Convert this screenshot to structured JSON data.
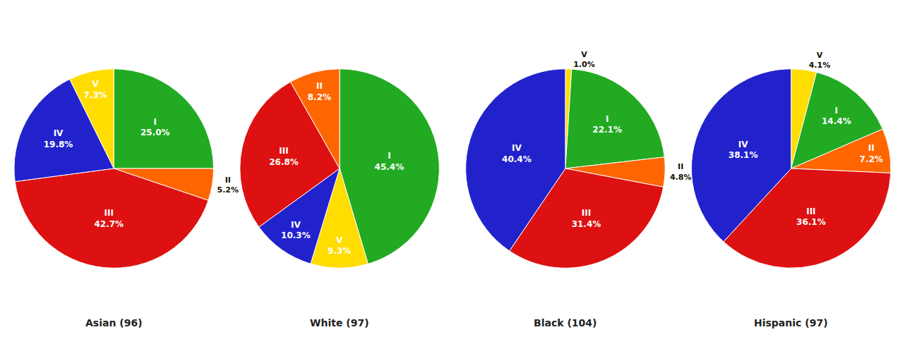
{
  "chart_data": [
    {
      "type": "pie",
      "title": "Asian (96)",
      "categories": [
        "I",
        "II",
        "III",
        "IV",
        "V"
      ],
      "values": [
        25.0,
        5.2,
        42.7,
        19.8,
        7.3
      ],
      "value_labels": [
        "25.0%",
        "5.2%",
        "42.7%",
        "19.8%",
        "7.3%"
      ],
      "colors": [
        "#22aa22",
        "#ff6600",
        "#dd1111",
        "#2222cc",
        "#ffdd00"
      ],
      "data_labels": true
    },
    {
      "type": "pie",
      "title": "White (97)",
      "categories": [
        "I",
        "V",
        "IV",
        "III",
        "II"
      ],
      "values": [
        45.4,
        9.3,
        10.3,
        26.8,
        8.2
      ],
      "value_labels": [
        "45.4%",
        "9.3%",
        "10.3%",
        "26.8%",
        "8.2%"
      ],
      "colors": [
        "#22aa22",
        "#ffdd00",
        "#2222cc",
        "#dd1111",
        "#ff6600"
      ],
      "data_labels": true
    },
    {
      "type": "pie",
      "title": "Black (104)",
      "categories": [
        "V",
        "I",
        "II",
        "III",
        "IV"
      ],
      "values": [
        1.0,
        22.1,
        4.8,
        31.4,
        40.4
      ],
      "value_labels": [
        "1.0%",
        "22.1%",
        "4.8%",
        "31.4%",
        "40.4%"
      ],
      "colors": [
        "#ffdd00",
        "#22aa22",
        "#ff6600",
        "#dd1111",
        "#2222cc"
      ],
      "data_labels": true
    },
    {
      "type": "pie",
      "title": "Hispanic (97)",
      "categories": [
        "V",
        "I",
        "II",
        "III",
        "IV"
      ],
      "values": [
        4.1,
        14.4,
        7.2,
        36.1,
        38.1
      ],
      "value_labels": [
        "4.1%",
        "14.4%",
        "7.2%",
        "36.1%",
        "38.1%"
      ],
      "colors": [
        "#ffdd00",
        "#22aa22",
        "#ff6600",
        "#dd1111",
        "#2222cc"
      ],
      "data_labels": true
    }
  ]
}
